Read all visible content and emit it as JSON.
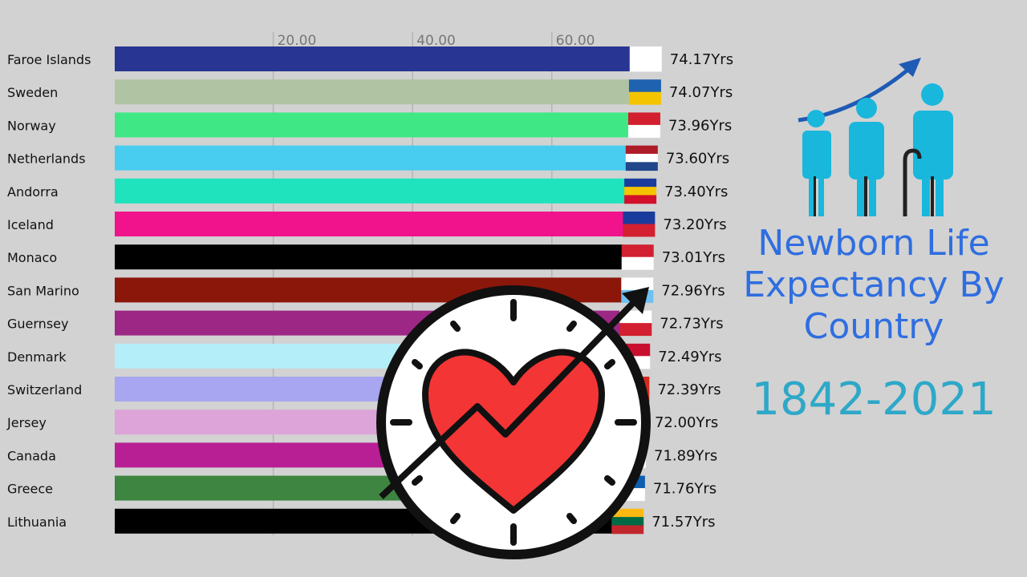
{
  "chart_data": {
    "type": "bar",
    "orientation": "horizontal",
    "categories": [
      "Faroe Islands",
      "Sweden",
      "Norway",
      "Netherlands",
      "Andorra",
      "Iceland",
      "Monaco",
      "San Marino",
      "Guernsey",
      "Denmark",
      "Switzerland",
      "Jersey",
      "Canada",
      "Greece",
      "Lithuania"
    ],
    "values": [
      74.17,
      74.07,
      73.96,
      73.6,
      73.4,
      73.2,
      73.01,
      72.96,
      72.73,
      72.49,
      72.39,
      72.0,
      71.89,
      71.76,
      71.57
    ],
    "value_labels": [
      "74.17Yrs",
      "74.07Yrs",
      "73.96Yrs",
      "73.60Yrs",
      "73.40Yrs",
      "73.20Yrs",
      "73.01Yrs",
      "72.96Yrs",
      "72.73Yrs",
      "72.49Yrs",
      "72.39Yrs",
      "72.00Yrs",
      "71.89Yrs",
      "71.76Yrs",
      "71.57Yrs"
    ],
    "colors": [
      "#283593",
      "#b0c4a4",
      "#3fe885",
      "#48ccf0",
      "#1ee3bd",
      "#f0138b",
      "#000000",
      "#8b170b",
      "#9c2784",
      "#b4eef8",
      "#a8a6f0",
      "#dca4d8",
      "#b81f94",
      "#3d8540",
      "#000000"
    ],
    "x_ticks": [
      20,
      40,
      60
    ],
    "x_tick_labels": [
      "20.00",
      "40.00",
      "60.00"
    ],
    "xlim": [
      0,
      74.17
    ],
    "grid": true,
    "title": "Newborn Life Expectancy By Country",
    "subtitle": "1842-2021"
  },
  "side": {
    "title": "Newborn Life Expectancy By Country",
    "years": "1842-2021"
  }
}
